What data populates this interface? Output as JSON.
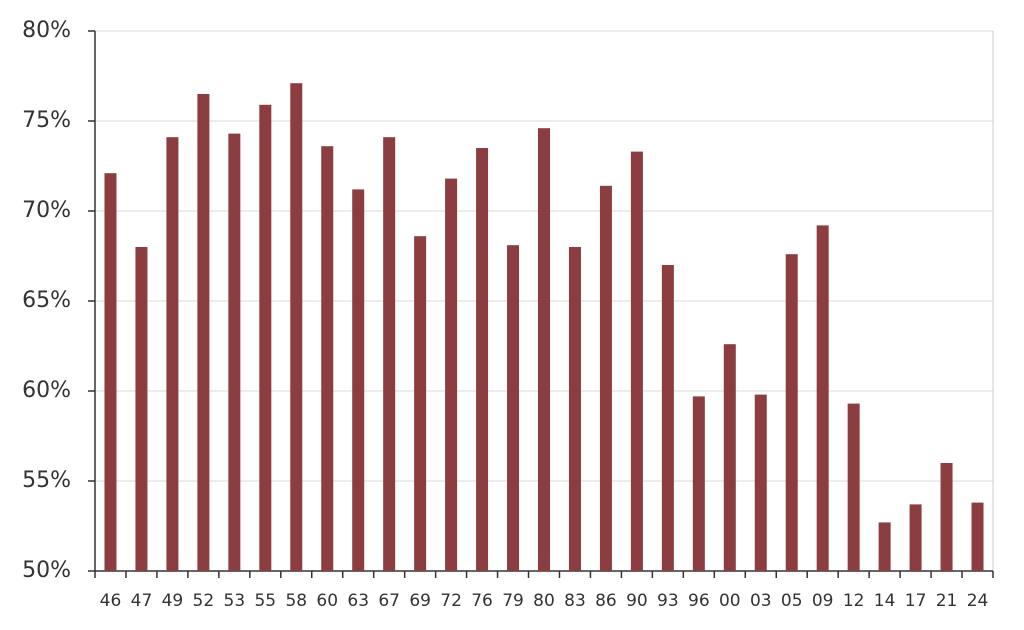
{
  "chart_data": {
    "type": "bar",
    "categories": [
      "46",
      "47",
      "49",
      "52",
      "53",
      "55",
      "58",
      "60",
      "63",
      "67",
      "69",
      "72",
      "76",
      "79",
      "80",
      "83",
      "86",
      "90",
      "93",
      "96",
      "00",
      "03",
      "05",
      "09",
      "12",
      "14",
      "17",
      "21",
      "24"
    ],
    "values": [
      72.1,
      68.0,
      74.1,
      76.5,
      74.3,
      75.9,
      77.1,
      73.6,
      71.2,
      74.1,
      68.6,
      71.8,
      73.5,
      68.1,
      74.6,
      68.0,
      71.4,
      73.3,
      67.0,
      59.7,
      62.6,
      59.8,
      67.6,
      69.2,
      59.3,
      52.7,
      53.7,
      56.0,
      53.8
    ],
    "color": "#8b3d3f",
    "ylim": [
      50,
      80
    ],
    "yticks": [
      {
        "value": 50,
        "label": "50%"
      },
      {
        "value": 55,
        "label": "55%"
      },
      {
        "value": 60,
        "label": "60%"
      },
      {
        "value": 65,
        "label": "65%"
      },
      {
        "value": 70,
        "label": "70%"
      },
      {
        "value": 75,
        "label": "75%"
      },
      {
        "value": 80,
        "label": "80%"
      }
    ],
    "grid": true
  }
}
